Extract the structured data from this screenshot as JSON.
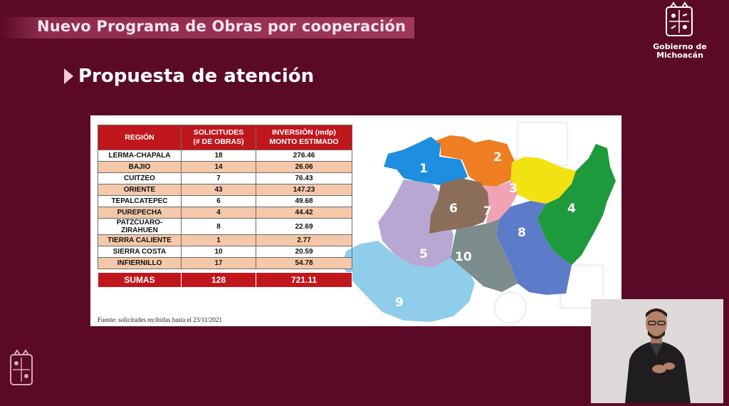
{
  "header": {
    "title": "Nuevo Programa de Obras por cooperación",
    "subtitle": "Propuesta de atención",
    "org_line1": "Gobierno de",
    "org_line2": "Michoacán"
  },
  "table": {
    "headers": [
      "REGIÓN",
      "SOLICITUDES",
      "(# DE OBRAS)",
      "INVERSIÓN (mdp)",
      "MONTO ESTIMADO"
    ],
    "rows": [
      {
        "region": "LERMA-CHAPALA",
        "solicitudes": "18",
        "inversion": "276.46"
      },
      {
        "region": "BAJIO",
        "solicitudes": "14",
        "inversion": "26.06"
      },
      {
        "region": "CUITZEO",
        "solicitudes": "7",
        "inversion": "76.43"
      },
      {
        "region": "ORIENTE",
        "solicitudes": "43",
        "inversion": "147.23"
      },
      {
        "region": "TEPALCATEPEC",
        "solicitudes": "6",
        "inversion": "49.68"
      },
      {
        "region": "PUREPECHA",
        "solicitudes": "4",
        "inversion": "44.42"
      },
      {
        "region": "PATZCUARO-ZIRAHUEN",
        "solicitudes": "8",
        "inversion": "22.69"
      },
      {
        "region": "TIERRA CALIENTE",
        "solicitudes": "1",
        "inversion": "2.77"
      },
      {
        "region": "SIERRA COSTA",
        "solicitudes": "10",
        "inversion": "20.59"
      },
      {
        "region": "INFIERNILLO",
        "solicitudes": "17",
        "inversion": "54.78"
      }
    ],
    "sum": {
      "label": "SUMAS",
      "solicitudes": "128",
      "inversion": "721.11"
    }
  },
  "footnote": "Fuente: solicitudes recibidas hasta el 23/11/2021",
  "map": {
    "regions": [
      {
        "number": "1",
        "color": "#1e8fe0"
      },
      {
        "number": "2",
        "color": "#ef7d22"
      },
      {
        "number": "3",
        "color": "#f2e212"
      },
      {
        "number": "4",
        "color": "#1e9a3c"
      },
      {
        "number": "5",
        "color": "#b7a7d2"
      },
      {
        "number": "6",
        "color": "#8a6e5a"
      },
      {
        "number": "7",
        "color": "#f0a3b4"
      },
      {
        "number": "8",
        "color": "#5c7bc9"
      },
      {
        "number": "9",
        "color": "#8fcdea"
      },
      {
        "number": "10",
        "color": "#7d8c8c"
      }
    ]
  },
  "colors": {
    "background": "#5a0a26",
    "table_header": "#c0171d",
    "row_alt": "#f4c8a9"
  }
}
